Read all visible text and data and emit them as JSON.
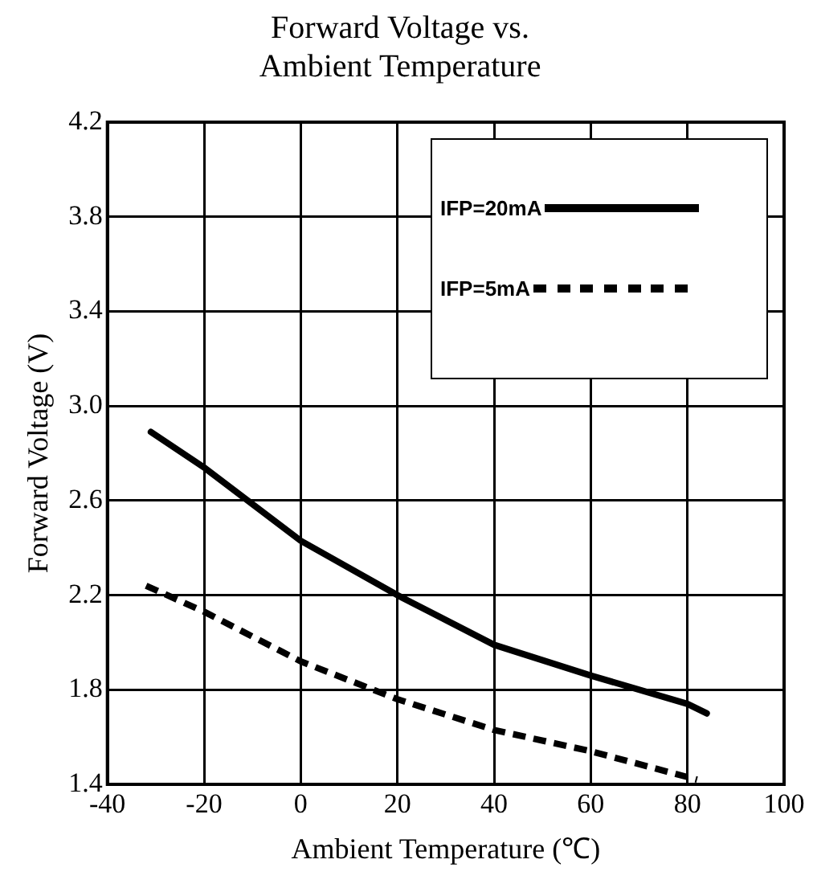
{
  "chart_data": {
    "type": "line",
    "title": "Forward Voltage vs.\nAmbient Temperature",
    "xlabel": "Ambient Temperature (℃)",
    "ylabel": "Forward Voltage (V)",
    "series": [
      {
        "name": "IFP=20mA",
        "color": "#000000",
        "line_style": "solid",
        "x": [
          -31,
          -20,
          0,
          20,
          40,
          60,
          80,
          84
        ],
        "values": [
          2.89,
          2.74,
          2.43,
          2.2,
          1.99,
          1.86,
          1.74,
          1.7
        ]
      },
      {
        "name": "IFP=5mA",
        "color": "#000000",
        "line_style": "dashed",
        "x": [
          -32,
          -20,
          0,
          20,
          40,
          60,
          82
        ],
        "values": [
          2.24,
          2.13,
          1.92,
          1.76,
          1.63,
          1.54,
          1.42
        ]
      }
    ],
    "xlim": [
      -40,
      100
    ],
    "xticks": [
      -40,
      -20,
      0,
      20,
      40,
      60,
      80,
      100
    ],
    "ylim": [
      1.4,
      4.2
    ],
    "yticks": [
      1.4,
      1.8,
      2.2,
      2.6,
      {
        "value": 3,
        "label": "3.0"
      },
      3.4,
      3.8,
      4.2
    ],
    "grid": true,
    "legend": "top right",
    "marker": "none"
  }
}
